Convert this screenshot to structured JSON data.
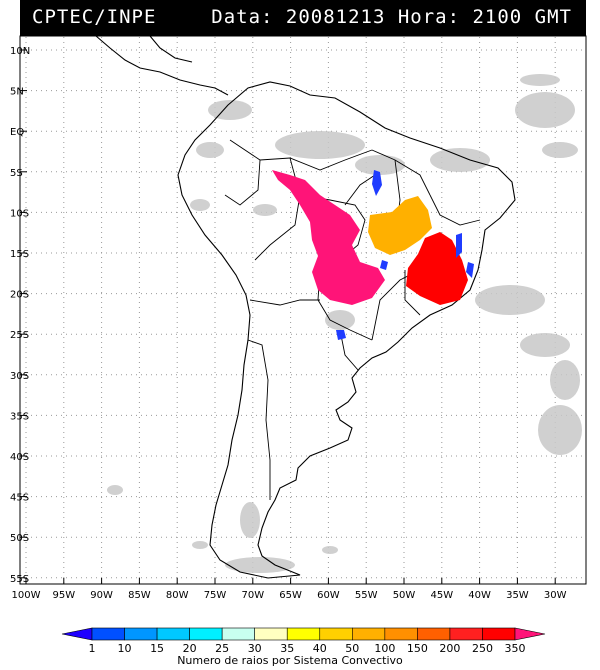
{
  "header": {
    "source": "CPTEC/INPE",
    "datetime": "Data: 20081213 Hora: 2100 GMT"
  },
  "map": {
    "lat_labels": [
      "10N",
      "5N",
      "EQ",
      "5S",
      "10S",
      "15S",
      "20S",
      "25S",
      "30S",
      "35S",
      "40S",
      "45S",
      "50S",
      "55S"
    ],
    "lon_labels": [
      "100W",
      "95W",
      "90W",
      "85W",
      "80W",
      "75W",
      "70W",
      "65W",
      "60W",
      "55W",
      "50W",
      "45W",
      "40W",
      "35W",
      "30W"
    ]
  },
  "legend": {
    "title": "Numero de raios por Sistema Convectivo",
    "values": [
      "1",
      "10",
      "15",
      "20",
      "25",
      "30",
      "35",
      "40",
      "50",
      "100",
      "150",
      "200",
      "250",
      "350"
    ],
    "colors": [
      "#1f00ff",
      "#0050ff",
      "#0096ff",
      "#00c8ff",
      "#00f0ff",
      "#c8fff0",
      "#ffffc0",
      "#ffff00",
      "#ffd000",
      "#ffb000",
      "#ff9000",
      "#ff6000",
      "#ff2020",
      "#ff0000",
      "#ff1478"
    ]
  }
}
